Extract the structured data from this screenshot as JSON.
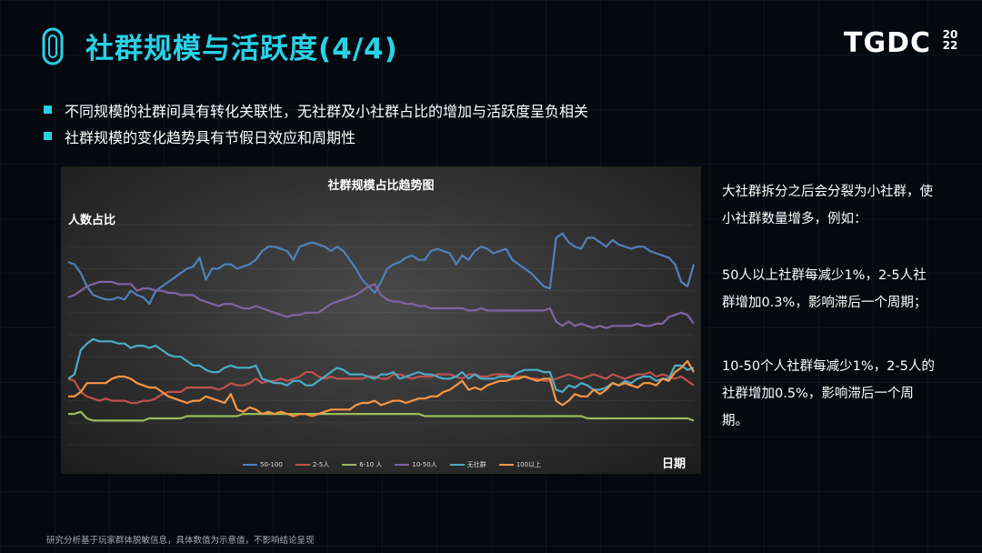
{
  "header": {
    "title": "社群规模与活跃度(4/4)",
    "logo_text": "TGDC",
    "logo_year_top": "20",
    "logo_year_bottom": "22",
    "accent_color": "#28d2e6"
  },
  "bullets": [
    "不同规模的社群间具有转化关联性，无社群及小社群占比的增加与活跃度呈负相关",
    "社群规模的变化趋势具有节假日效应和周期性"
  ],
  "notes": {
    "note1": "大社群拆分之后会分裂为小社群，使小社群数量增多，例如：",
    "note2": "50人以上社群每减少1%，2-5人社群增加0.3%，影响滞后一个周期；",
    "note3": "10-50个人社群每减少1%，2-5人的社群增加0.5%，影响滞后一个周期。"
  },
  "footer": "研究分析基于玩家群体脱敏信息，具体数值为示意值，不影响结论呈现",
  "chart_data": {
    "type": "line",
    "title": "社群规模占比趋势图",
    "ylabel": "人数占比",
    "xlabel": "日期",
    "ylim": [
      0,
      100
    ],
    "x": [
      0,
      1,
      2,
      3,
      4,
      5,
      6,
      7,
      8,
      9,
      10,
      11,
      12,
      13,
      14,
      15,
      16,
      17,
      18,
      19,
      20,
      21,
      22,
      23,
      24,
      25,
      26,
      27,
      28,
      29,
      30,
      31,
      32,
      33,
      34,
      35,
      36,
      37,
      38,
      39,
      40,
      41,
      42,
      43,
      44,
      45,
      46,
      47,
      48,
      49,
      50,
      51,
      52,
      53,
      54,
      55,
      56,
      57,
      58,
      59,
      60,
      61,
      62,
      63,
      64,
      65,
      66,
      67,
      68,
      69,
      70,
      71,
      72,
      73,
      74,
      75,
      76,
      77,
      78,
      79,
      80,
      81,
      82,
      83,
      84,
      85,
      86,
      87,
      88,
      89,
      90,
      91,
      92,
      93,
      94,
      95,
      96,
      97,
      98,
      99,
      100
    ],
    "grid": true,
    "legend_position": "bottom",
    "series": [
      {
        "name": "50-100",
        "color": "#4f81bd",
        "values": [
          83,
          82,
          78,
          72,
          68,
          67,
          66,
          66,
          67,
          66,
          70,
          68,
          67,
          64,
          70,
          72,
          74,
          76,
          78,
          80,
          81,
          85,
          75,
          80,
          80,
          82,
          82,
          80,
          81,
          82,
          84,
          88,
          90,
          90,
          89,
          88,
          84,
          90,
          91,
          92,
          91,
          90,
          88,
          90,
          88,
          84,
          80,
          75,
          72,
          69,
          74,
          80,
          82,
          83,
          85,
          86,
          84,
          84,
          88,
          89,
          88,
          87,
          82,
          86,
          84,
          88,
          90,
          89,
          87,
          88,
          89,
          84,
          82,
          80,
          78,
          75,
          72,
          71,
          94,
          96,
          92,
          90,
          89,
          94,
          94,
          92,
          90,
          93,
          91,
          90,
          89,
          90,
          90,
          88,
          87,
          86,
          85,
          82,
          74,
          72,
          82
        ]
      },
      {
        "name": "2-5人",
        "color": "#c0504d",
        "values": [
          30,
          29,
          24,
          22,
          21,
          20,
          21,
          20,
          20,
          20,
          19,
          19,
          20,
          20,
          21,
          23,
          24,
          24,
          24,
          26,
          26,
          26,
          26,
          26,
          25,
          26,
          28,
          27,
          27,
          28,
          30,
          28,
          29,
          29,
          30,
          29,
          30,
          31,
          33,
          33,
          31,
          30,
          31,
          30,
          30,
          30,
          30,
          30,
          31,
          31,
          30,
          30,
          32,
          32,
          31,
          30,
          31,
          31,
          31,
          32,
          32,
          32,
          31,
          30,
          32,
          32,
          31,
          31,
          32,
          32,
          32,
          31,
          31,
          31,
          30,
          30,
          29,
          29,
          30,
          31,
          32,
          31,
          30,
          31,
          32,
          31,
          30,
          32,
          31,
          30,
          31,
          32,
          32,
          33,
          31,
          32,
          31,
          30,
          31,
          29,
          27
        ]
      },
      {
        "name": "6-10 人",
        "color": "#9bbb59",
        "values": [
          14,
          14,
          15,
          12,
          11,
          11,
          11,
          11,
          11,
          11,
          11,
          11,
          11,
          12,
          12,
          12,
          12,
          12,
          12,
          13,
          13,
          13,
          13,
          13,
          13,
          13,
          13,
          13,
          14,
          14,
          14,
          14,
          14,
          14,
          14,
          14,
          14,
          14,
          14,
          14,
          14,
          14,
          14,
          14,
          14,
          14,
          14,
          14,
          14,
          14,
          14,
          14,
          14,
          14,
          14,
          14,
          14,
          13,
          13,
          13,
          13,
          13,
          13,
          13,
          13,
          13,
          13,
          13,
          13,
          13,
          13,
          13,
          13,
          13,
          13,
          13,
          13,
          13,
          13,
          13,
          13,
          13,
          13,
          12,
          12,
          12,
          12,
          12,
          12,
          12,
          12,
          12,
          12,
          12,
          12,
          12,
          12,
          12,
          12,
          12,
          11
        ]
      },
      {
        "name": "10-50人",
        "color": "#8064a2",
        "values": [
          67,
          68,
          70,
          72,
          73,
          74,
          74,
          74,
          73,
          73,
          73,
          70,
          71,
          71,
          70,
          70,
          69,
          69,
          68,
          68,
          68,
          66,
          65,
          64,
          63,
          64,
          64,
          63,
          62,
          62,
          63,
          62,
          61,
          60,
          59,
          58,
          59,
          59,
          60,
          60,
          60,
          62,
          64,
          65,
          66,
          67,
          68,
          70,
          72,
          73,
          68,
          66,
          65,
          65,
          64,
          64,
          63,
          63,
          62,
          62,
          62,
          62,
          62,
          62,
          61,
          61,
          62,
          61,
          61,
          61,
          61,
          61,
          61,
          61,
          61,
          61,
          61,
          62,
          56,
          54,
          56,
          54,
          55,
          54,
          53,
          54,
          53,
          54,
          54,
          54,
          54,
          55,
          54,
          54,
          55,
          55,
          58,
          59,
          60,
          59,
          55
        ]
      },
      {
        "name": "无社群",
        "color": "#4bacc6",
        "values": [
          30,
          32,
          43,
          46,
          48,
          47,
          47,
          47,
          46,
          46,
          44,
          45,
          45,
          44,
          45,
          43,
          41,
          40,
          40,
          38,
          36,
          36,
          34,
          33,
          33,
          35,
          36,
          35,
          35,
          35,
          36,
          30,
          29,
          28,
          28,
          27,
          29,
          29,
          27,
          27,
          29,
          31,
          33,
          35,
          34,
          32,
          32,
          32,
          31,
          30,
          32,
          32,
          33,
          30,
          31,
          32,
          33,
          32,
          32,
          31,
          30,
          30,
          31,
          33,
          30,
          32,
          30,
          30,
          30,
          31,
          31,
          31,
          33,
          34,
          34,
          34,
          33,
          33,
          25,
          24,
          27,
          26,
          28,
          27,
          25,
          25,
          26,
          28,
          27,
          29,
          28,
          30,
          31,
          31,
          29,
          30,
          30,
          36,
          36,
          34,
          35
        ]
      },
      {
        "name": "100以上",
        "color": "#f79646",
        "values": [
          22,
          22,
          24,
          28,
          28,
          28,
          28,
          30,
          31,
          31,
          30,
          28,
          27,
          26,
          26,
          24,
          22,
          21,
          20,
          19,
          20,
          20,
          22,
          21,
          20,
          19,
          23,
          16,
          15,
          17,
          16,
          14,
          15,
          14,
          15,
          14,
          13,
          14,
          14,
          13,
          14,
          15,
          16,
          16,
          16,
          16,
          18,
          19,
          19,
          20,
          18,
          19,
          20,
          20,
          19,
          20,
          21,
          21,
          22,
          22,
          24,
          25,
          27,
          29,
          25,
          26,
          25,
          27,
          28,
          29,
          29,
          30,
          30,
          31,
          30,
          29,
          30,
          30,
          20,
          18,
          20,
          23,
          22,
          22,
          25,
          23,
          25,
          28,
          27,
          28,
          27,
          26,
          28,
          28,
          27,
          30,
          29,
          33,
          35,
          38,
          33
        ]
      }
    ]
  }
}
